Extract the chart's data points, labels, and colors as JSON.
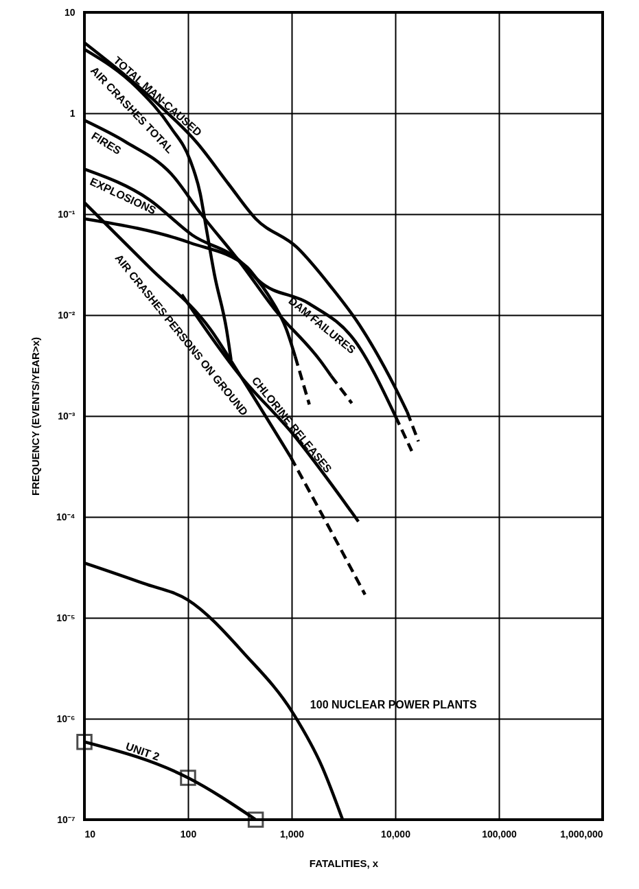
{
  "chart_data": {
    "type": "line",
    "xlabel": "FATALITIES, x",
    "ylabel": "FREQUENCY (EVENTS/YEAR>x)",
    "log": "xy",
    "grid": true,
    "xlim": [
      10,
      1000000
    ],
    "ylim": [
      1e-07,
      10
    ],
    "xticks": [
      10,
      100,
      {
        "value": 1000,
        "label": "1,000"
      },
      {
        "value": 10000,
        "label": "10,000"
      },
      {
        "value": 100000,
        "label": "100,000"
      },
      {
        "value": 1000000,
        "label": "1,000,000"
      }
    ],
    "yticks": [
      10,
      1,
      {
        "value": 0.1,
        "label": "10⁻¹"
      },
      {
        "value": 0.01,
        "label": "10⁻²"
      },
      {
        "value": 0.001,
        "label": "10⁻³"
      },
      {
        "value": 0.0001,
        "label": "10⁻⁴"
      },
      {
        "value": 1e-05,
        "label": "10⁻⁵"
      },
      {
        "value": 1e-06,
        "label": "10⁻⁶"
      },
      {
        "value": 1e-07,
        "label": "10⁻⁷"
      }
    ],
    "series": [
      {
        "name": "TOTAL MAN-CAUSED",
        "color": "#000000",
        "x": [
          10,
          59,
          122,
          245,
          450,
          1120,
          2400,
          4500,
          10000,
          13000
        ],
        "values": [
          5,
          1.08,
          0.51,
          0.2,
          0.09,
          0.047,
          0.019,
          0.008,
          0.0019,
          0.0011
        ]
      },
      {
        "color": "#000000",
        "line_style": "dashed",
        "x": [
          13000,
          16700
        ],
        "values": [
          0.0011,
          0.00056
        ]
      },
      {
        "name": "AIR CRASHES TOTAL",
        "color": "#000000",
        "x": [
          10,
          32,
          69,
          105,
          131,
          150,
          180,
          235,
          260
        ],
        "values": [
          4.3,
          1.8,
          0.71,
          0.34,
          0.16,
          0.072,
          0.025,
          0.0072,
          0.0036
        ]
      },
      {
        "name": "FIRES",
        "color": "#000000",
        "x": [
          10,
          25,
          69,
          134,
          320,
          680,
          1900,
          2400
        ],
        "values": [
          0.85,
          0.52,
          0.25,
          0.1,
          0.033,
          0.0115,
          0.0035,
          0.0025
        ]
      },
      {
        "color": "#000000",
        "line_style": "dashed",
        "x": [
          2400,
          3800
        ],
        "values": [
          0.0025,
          0.00134
        ]
      },
      {
        "name": "EXPLOSIONS",
        "color": "#000000",
        "x": [
          10,
          42,
          110,
          330,
          590,
          890,
          1080
        ],
        "values": [
          0.28,
          0.14,
          0.062,
          0.033,
          0.016,
          0.0072,
          0.0039
        ]
      },
      {
        "color": "#000000",
        "line_style": "dashed",
        "x": [
          1080,
          1480
        ],
        "values": [
          0.0039,
          0.0013
        ]
      },
      {
        "name": "DAM FAILURES",
        "color": "#000000",
        "x": [
          10,
          105,
          370,
          480,
          1470,
          4100,
          10000
        ],
        "values": [
          0.09,
          0.052,
          0.03,
          0.022,
          0.013,
          0.0055,
          0.001
        ]
      },
      {
        "color": "#000000",
        "line_style": "dashed",
        "x": [
          10000,
          14400
        ],
        "values": [
          0.001,
          0.00045
        ]
      },
      {
        "name": "CHLORINE RELEASES",
        "color": "#000000",
        "x": [
          87,
          300,
          1030,
          4400
        ],
        "values": [
          0.016,
          0.0027,
          0.00066,
          9e-05
        ]
      },
      {
        "name": "AIR CRASHES PERSONS ON GROUND",
        "color": "#000000",
        "x": [
          10,
          42,
          165,
          320,
          980
        ],
        "values": [
          0.13,
          0.03,
          0.0072,
          0.0025,
          0.00039
        ]
      },
      {
        "color": "#000000",
        "line_style": "dashed",
        "x": [
          980,
          2200,
          5100
        ],
        "values": [
          0.00039,
          8.5e-05,
          1.7e-05
        ]
      },
      {
        "name": "100 NUCLEAR POWER PLANTS",
        "color": "#000000",
        "x": [
          10,
          37,
          100,
          350,
          1050,
          1950,
          3100
        ],
        "values": [
          3.5e-05,
          2.2e-05,
          1.5e-05,
          4.4e-06,
          1.1e-06,
          3.4e-07,
          1e-07
        ]
      },
      {
        "name": "UNIT 2",
        "color": "#000000",
        "marker": "square",
        "x": [
          10,
          100,
          450
        ],
        "values": [
          5.9e-07,
          2.6e-07,
          1e-07
        ]
      }
    ]
  }
}
